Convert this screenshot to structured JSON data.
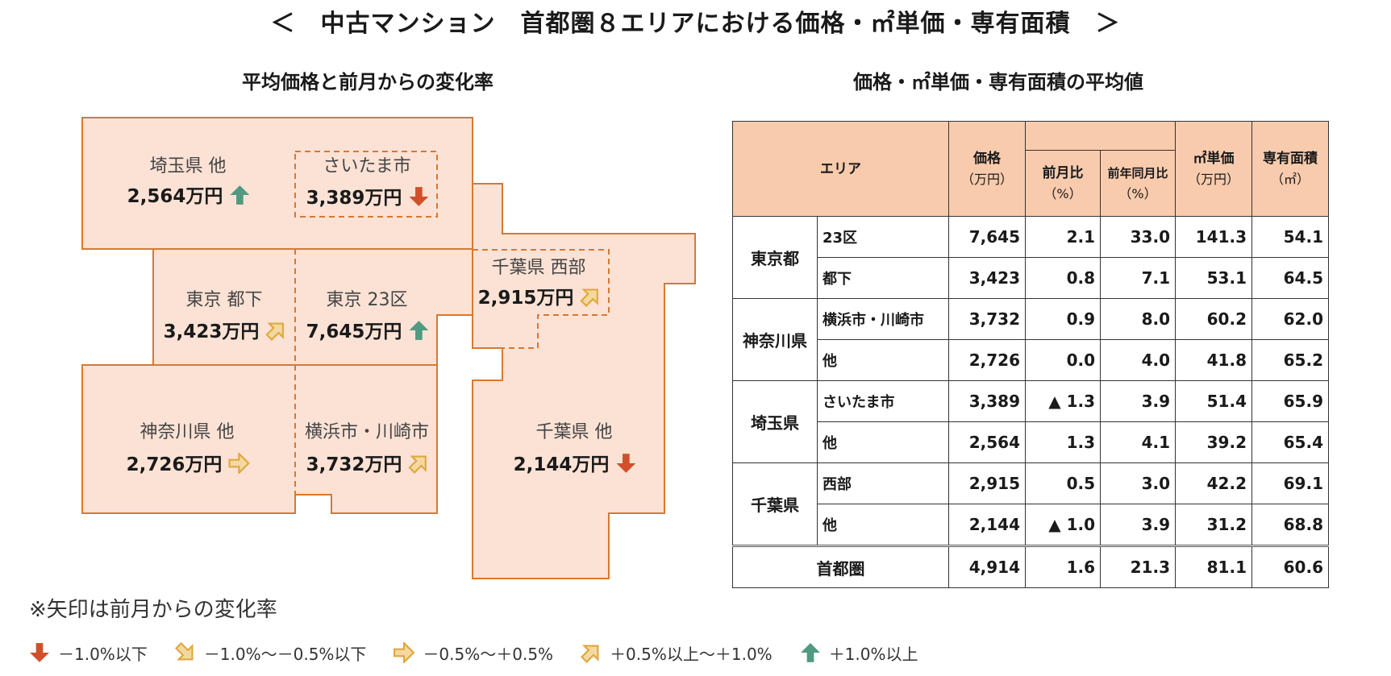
{
  "title": "＜　中古マンション　首都圏８エリアにおける価格・㎡単価・専有面積　＞",
  "map_section": {
    "title": "平均価格と前月からの変化率",
    "areas": [
      {
        "name": "埼玉県 他",
        "price": "2,564万円",
        "trend": "up"
      },
      {
        "name": "さいたま市",
        "price": "3,389万円",
        "trend": "down"
      },
      {
        "name": "千葉県 西部",
        "price": "2,915万円",
        "trend": "slight-up"
      },
      {
        "name": "東京 都下",
        "price": "3,423万円",
        "trend": "slight-up"
      },
      {
        "name": "東京 23区",
        "price": "7,645万円",
        "trend": "up"
      },
      {
        "name": "神奈川県 他",
        "price": "2,726万円",
        "trend": "flat"
      },
      {
        "name": "横浜市・川崎市",
        "price": "3,732万円",
        "trend": "slight-up"
      },
      {
        "name": "千葉県 他",
        "price": "2,144万円",
        "trend": "down"
      }
    ]
  },
  "table_section": {
    "title": "価格・㎡単価・専有面積の平均値",
    "headers": {
      "area": "エリア",
      "price": "価格",
      "price_unit": "（万円）",
      "mom": "前月比",
      "mom_unit": "（%）",
      "yoy": "前年同月比",
      "yoy_unit": "（%）",
      "unit_price": "㎡単価",
      "unit_price_unit": "（万円）",
      "area_size": "専有面積",
      "area_size_unit": "（㎡）"
    },
    "groups": [
      {
        "pref": "東京都",
        "rows": [
          {
            "sub": "23区",
            "price": "7,645",
            "mom": "2.1",
            "yoy": "33.0",
            "unit_price": "141.3",
            "size": "54.1"
          },
          {
            "sub": "都下",
            "price": "3,423",
            "mom": "0.8",
            "yoy": "7.1",
            "unit_price": "53.1",
            "size": "64.5"
          }
        ]
      },
      {
        "pref": "神奈川県",
        "rows": [
          {
            "sub": "横浜市・川崎市",
            "price": "3,732",
            "mom": "0.9",
            "yoy": "8.0",
            "unit_price": "60.2",
            "size": "62.0"
          },
          {
            "sub": "他",
            "price": "2,726",
            "mom": "0.0",
            "yoy": "4.0",
            "unit_price": "41.8",
            "size": "65.2"
          }
        ]
      },
      {
        "pref": "埼玉県",
        "rows": [
          {
            "sub": "さいたま市",
            "price": "3,389",
            "mom": "▲ 1.3",
            "yoy": "3.9",
            "unit_price": "51.4",
            "size": "65.9"
          },
          {
            "sub": "他",
            "price": "2,564",
            "mom": "1.3",
            "yoy": "4.1",
            "unit_price": "39.2",
            "size": "65.4"
          }
        ]
      },
      {
        "pref": "千葉県",
        "rows": [
          {
            "sub": "西部",
            "price": "2,915",
            "mom": "0.5",
            "yoy": "3.0",
            "unit_price": "42.2",
            "size": "69.1"
          },
          {
            "sub": "他",
            "price": "2,144",
            "mom": "▲ 1.0",
            "yoy": "3.9",
            "unit_price": "31.2",
            "size": "68.8"
          }
        ]
      }
    ],
    "total": {
      "label": "首都圏",
      "price": "4,914",
      "mom": "1.6",
      "yoy": "21.3",
      "unit_price": "81.1",
      "size": "60.6"
    }
  },
  "note": "※矢印は前月からの変化率",
  "legend": [
    {
      "trend": "down",
      "label": "－1.0%以下"
    },
    {
      "trend": "slight-down",
      "label": "－1.0%～－0.5%以下"
    },
    {
      "trend": "flat",
      "label": "－0.5%～＋0.5%"
    },
    {
      "trend": "slight-up",
      "label": "＋0.5%以上～＋1.0%"
    },
    {
      "trend": "up",
      "label": "＋1.0%以上"
    }
  ],
  "colors": {
    "region_fill": "#fbe2d5",
    "region_stroke": "#d9782f",
    "header_fill": "#f8cbad",
    "arrow_up": "#4f9a80",
    "arrow_down": "#d1502b",
    "arrow_mid": "#e0a840"
  },
  "chart_data": {
    "type": "table",
    "title": "価格・㎡単価・専有面積の平均値",
    "columns": [
      "エリア",
      "価格（万円）",
      "前月比（%）",
      "前年同月比（%）",
      "㎡単価（万円）",
      "専有面積（㎡）"
    ],
    "rows": [
      [
        "東京都 23区",
        7645,
        2.1,
        33.0,
        141.3,
        54.1
      ],
      [
        "東京都 都下",
        3423,
        0.8,
        7.1,
        53.1,
        64.5
      ],
      [
        "神奈川県 横浜市・川崎市",
        3732,
        0.9,
        8.0,
        60.2,
        62.0
      ],
      [
        "神奈川県 他",
        2726,
        0.0,
        4.0,
        41.8,
        65.2
      ],
      [
        "埼玉県 さいたま市",
        3389,
        -1.3,
        3.9,
        51.4,
        65.9
      ],
      [
        "埼玉県 他",
        2564,
        1.3,
        4.1,
        39.2,
        65.4
      ],
      [
        "千葉県 西部",
        2915,
        0.5,
        3.0,
        42.2,
        69.1
      ],
      [
        "千葉県 他",
        2144,
        -1.0,
        3.9,
        31.2,
        68.8
      ],
      [
        "首都圏",
        4914,
        1.6,
        21.3,
        81.1,
        60.6
      ]
    ]
  }
}
